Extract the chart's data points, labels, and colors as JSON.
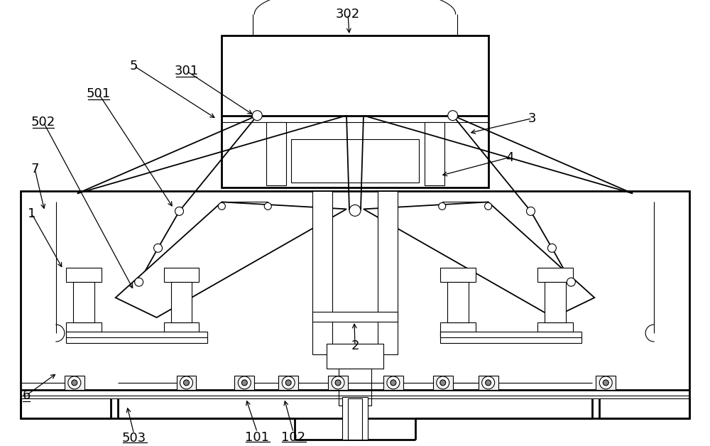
{
  "bg": "#ffffff",
  "lc": "#000000",
  "lw": 1.3,
  "tlw": 0.8,
  "hlw": 2.0,
  "fs": 13
}
